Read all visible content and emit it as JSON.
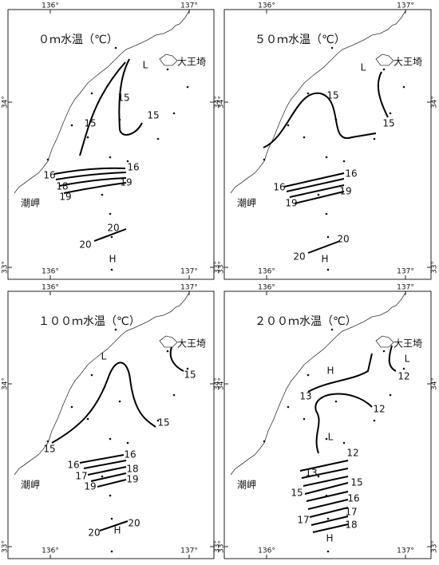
{
  "panels": [
    {
      "title": "０ｍ水温（℃）",
      "place_labels": [
        "大王埼",
        "潮岬"
      ],
      "lon_labels": [
        "136°",
        "137°"
      ],
      "lat_labels": [
        "34°",
        "33°"
      ],
      "contour_labels": [
        "L",
        15,
        15,
        15,
        16,
        16,
        18,
        19,
        19,
        20,
        20,
        "H"
      ]
    },
    {
      "title": "５０ｍ水温（℃）",
      "place_labels": [
        "大王埼",
        "潮岬"
      ],
      "lon_labels": [
        "136°",
        "137°"
      ],
      "lat_labels": [
        "34°",
        "33°"
      ],
      "contour_labels": [
        "L",
        15,
        15,
        16,
        16,
        19,
        19,
        20,
        20,
        "H"
      ]
    },
    {
      "title": "１００ｍ水温（℃）",
      "place_labels": [
        "大王埼",
        "潮岬"
      ],
      "lon_labels": [
        "136°",
        "137°"
      ],
      "lat_labels": [
        "34°",
        "33°"
      ],
      "contour_labels": [
        "L",
        15,
        15,
        15,
        16,
        16,
        18,
        17,
        19,
        19,
        20,
        20,
        "H"
      ]
    },
    {
      "title": "２００ｍ水温（℃）",
      "place_labels": [
        "大王埼",
        "潮岬"
      ],
      "lon_labels": [
        "136°",
        "137°"
      ],
      "lat_labels": [
        "34°",
        "33°"
      ],
      "contour_labels": [
        "L",
        12,
        "H",
        13,
        12,
        "L",
        12,
        13,
        15,
        15,
        16,
        17,
        17,
        18,
        "H"
      ]
    }
  ]
}
